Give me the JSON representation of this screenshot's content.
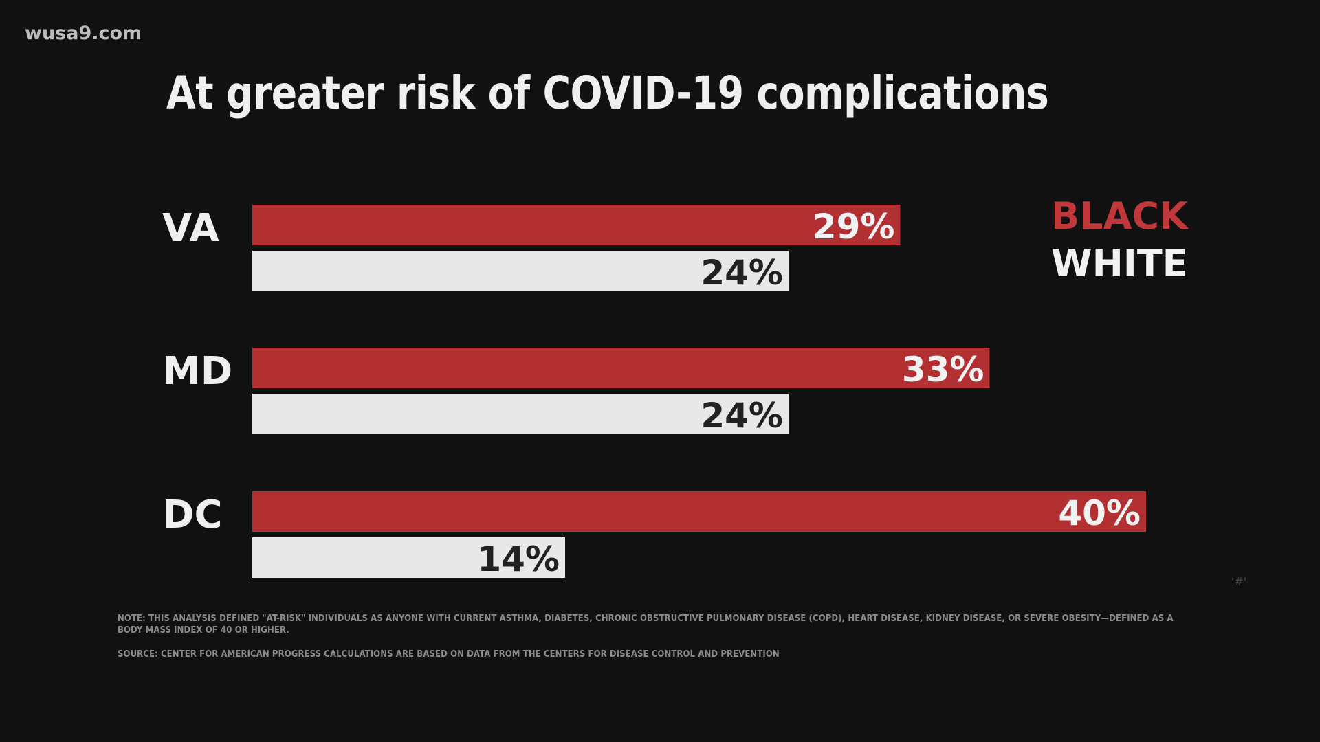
{
  "watermark": "wusa9.com",
  "corner_mark": "'#'",
  "chart_data": {
    "type": "bar",
    "orientation": "horizontal",
    "title": "At greater risk of COVID-19 complications",
    "categories": [
      "VA",
      "MD",
      "DC"
    ],
    "series": [
      {
        "name": "BLACK",
        "color": "#b33032",
        "label_color": "#f2f2f2",
        "values": [
          29,
          33,
          40
        ]
      },
      {
        "name": "WHITE",
        "color": "#e8e8e8",
        "label_color": "#222222",
        "values": [
          24,
          24,
          14
        ]
      }
    ],
    "value_suffix": "%",
    "xlabel": "",
    "ylabel": "",
    "xlim": [
      0,
      40
    ],
    "grid": false,
    "legend_position": "top-right",
    "legend": [
      {
        "label": "BLACK",
        "color": "#c0383a"
      },
      {
        "label": "WHITE",
        "color": "#f2f2f2"
      }
    ]
  },
  "footnotes": {
    "note": "NOTE: THIS ANALYSIS DEFINED \"AT-RISK\" INDIVIDUALS AS ANYONE WITH CURRENT ASTHMA, DIABETES, CHRONIC OBSTRUCTIVE PULMONARY DISEASE (COPD), HEART DISEASE, KIDNEY DISEASE, OR SEVERE OBESITY—DEFINED AS A BODY MASS INDEX OF 40 OR HIGHER.",
    "source": "SOURCE: CENTER FOR AMERICAN PROGRESS CALCULATIONS ARE BASED ON DATA FROM THE CENTERS FOR DISEASE CONTROL AND PREVENTION"
  }
}
